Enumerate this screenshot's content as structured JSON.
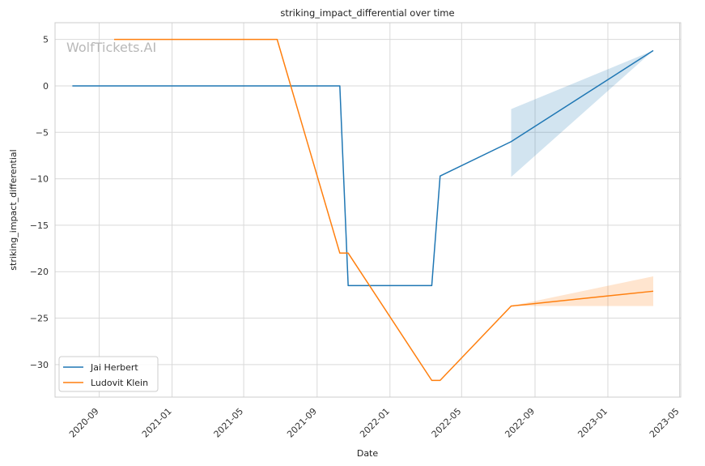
{
  "chart_data": {
    "type": "line",
    "title": "striking_impact_differential over time",
    "xlabel": "Date",
    "ylabel": "striking_impact_differential",
    "watermark": "WolfTickets.AI",
    "x_ticks": [
      "2020-09",
      "2021-01",
      "2021-05",
      "2021-09",
      "2022-01",
      "2022-05",
      "2022-09",
      "2023-01",
      "2023-05"
    ],
    "y_ticks": [
      5,
      0,
      -5,
      -10,
      -15,
      -20,
      -25,
      -30
    ],
    "y_tick_labels": [
      "5",
      "0",
      "−5",
      "−10",
      "−15",
      "−20",
      "−25",
      "−30"
    ],
    "xlim": [
      "2020-06-19",
      "2023-05-03"
    ],
    "ylim": [
      -33.5,
      6.8
    ],
    "grid": true,
    "legend_position": "lower-left",
    "series": [
      {
        "name": "Jai Herbert",
        "color": "#1f77b4",
        "points": [
          {
            "x": "2020-07-18",
            "y": 0
          },
          {
            "x": "2021-10-09",
            "y": 0
          },
          {
            "x": "2021-10-23",
            "y": -21.5
          },
          {
            "x": "2022-03-12",
            "y": -21.5
          },
          {
            "x": "2022-03-26",
            "y": -9.7
          },
          {
            "x": "2022-07-23",
            "y": -6.0
          },
          {
            "x": "2023-03-18",
            "y": 3.8
          }
        ],
        "band": [
          {
            "x": "2022-07-23",
            "low": -9.8,
            "high": -2.5
          },
          {
            "x": "2023-03-18",
            "low": 3.8,
            "high": 3.8
          }
        ]
      },
      {
        "name": "Ludovit Klein",
        "color": "#ff7f0e",
        "points": [
          {
            "x": "2020-09-26",
            "y": 5
          },
          {
            "x": "2021-06-26",
            "y": 5
          },
          {
            "x": "2021-10-09",
            "y": -18.0
          },
          {
            "x": "2021-10-23",
            "y": -18.0
          },
          {
            "x": "2022-03-12",
            "y": -31.7
          },
          {
            "x": "2022-03-26",
            "y": -31.7
          },
          {
            "x": "2022-07-23",
            "y": -23.7
          },
          {
            "x": "2023-03-18",
            "y": -22.1
          }
        ],
        "band": [
          {
            "x": "2022-07-23",
            "low": -23.7,
            "high": -23.7
          },
          {
            "x": "2023-03-18",
            "low": -23.7,
            "high": -20.5
          }
        ]
      }
    ]
  }
}
